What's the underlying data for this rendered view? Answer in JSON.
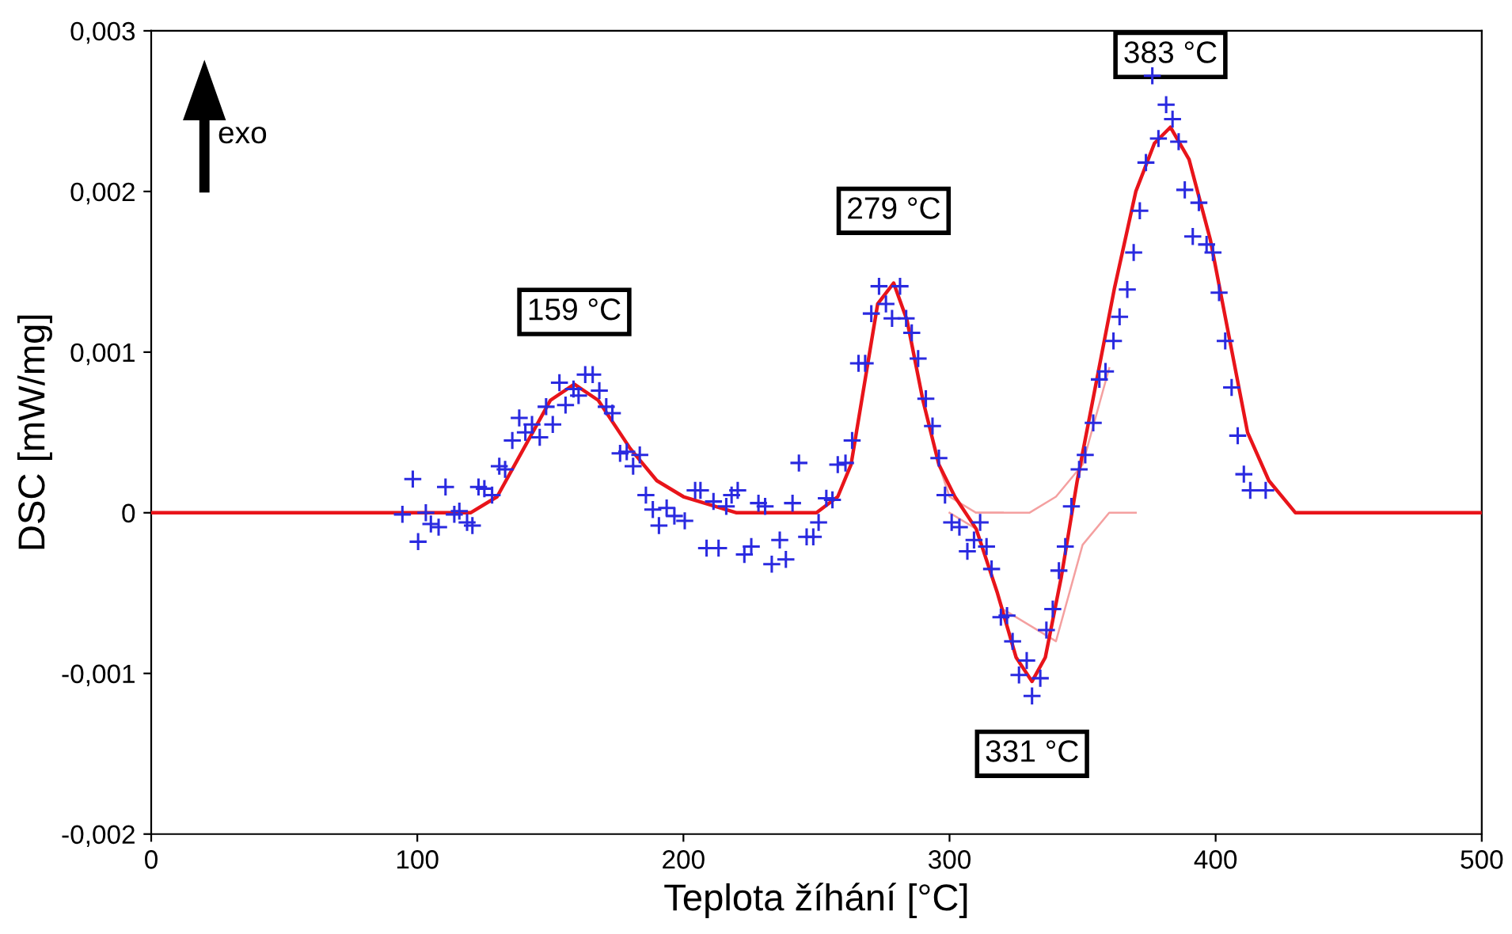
{
  "chart_data": {
    "type": "scatter",
    "xlabel": "Teplota žíhání [°C]",
    "ylabel": "DSC [mW/mg]",
    "xlim": [
      0,
      500
    ],
    "xticks": [
      0,
      100,
      200,
      300,
      400,
      500
    ],
    "ylim": [
      -0.002,
      0.003
    ],
    "yticks": [
      {
        "value": -0.002,
        "label": "-0,002"
      },
      {
        "value": -0.001,
        "label": "-0,001"
      },
      {
        "value": 0,
        "label": "0"
      },
      {
        "value": 0.001,
        "label": "0,001"
      },
      {
        "value": 0.002,
        "label": "0,002"
      },
      {
        "value": 0.003,
        "label": "0,003"
      }
    ],
    "grid": false,
    "legend": false,
    "annotations": [
      "exo",
      {
        "text": "159 °C",
        "x": 159,
        "y": 0.0008
      },
      {
        "text": "279 °C",
        "x": 279,
        "y": 0.00143
      },
      {
        "text": "331 °C",
        "x": 331,
        "y": -0.00105
      },
      {
        "text": "383 °C",
        "x": 383,
        "y": 0.0024
      }
    ],
    "series": [
      {
        "type": "line",
        "color": "#f4a0a0",
        "line_style": "solid",
        "marker": "none",
        "x": [
          310,
          330,
          340,
          350,
          360
        ],
        "values": [
          0,
          0,
          0.0001,
          0.0003,
          0.0009
        ]
      },
      {
        "type": "line",
        "color": "#f4a0a0",
        "line_style": "solid",
        "marker": "none",
        "x": [
          300,
          310,
          320,
          340,
          345,
          350,
          360,
          370
        ],
        "values": [
          0,
          -0.0001,
          -0.0006,
          -0.0008,
          -0.0005,
          -0.0002,
          0,
          0
        ]
      },
      {
        "type": "line",
        "color": "#f4a0a0",
        "line_style": "solid",
        "marker": "none",
        "x": [
          296,
          300,
          310,
          320
        ],
        "values": [
          0.0003,
          0.0001,
          0,
          0
        ]
      },
      {
        "type": "line",
        "color": "#e8141a",
        "line_style": "solid",
        "marker": "none",
        "x": [
          0,
          100,
          120,
          130,
          140,
          150,
          159,
          168,
          180,
          190,
          200,
          220,
          250,
          258,
          263,
          268,
          273,
          279,
          284,
          290,
          296,
          302,
          310,
          318,
          325,
          331,
          336,
          342,
          348,
          355,
          362,
          370,
          377,
          383,
          390,
          398,
          405,
          412,
          420,
          430,
          450,
          500
        ],
        "values": [
          0,
          0,
          0,
          0.0001,
          0.0004,
          0.0007,
          0.0008,
          0.0007,
          0.0004,
          0.0002,
          0.0001,
          0,
          0,
          0.0001,
          0.0003,
          0.0008,
          0.0013,
          0.00143,
          0.0012,
          0.0007,
          0.0003,
          0.0001,
          -0.0001,
          -0.0005,
          -0.0009,
          -0.00105,
          -0.0009,
          -0.0004,
          0.0002,
          0.0008,
          0.0014,
          0.002,
          0.0023,
          0.0024,
          0.0022,
          0.0017,
          0.0011,
          0.0005,
          0.0002,
          0,
          0,
          0
        ]
      },
      {
        "color": "#2a2ae0",
        "marker": "cross",
        "x": [
          94.4,
          98.3,
          100.3,
          103.2,
          105.1,
          108,
          110.6,
          113.9,
          115.8,
          118.7,
          120.7,
          123,
          125.2,
          128.1,
          130.8,
          133,
          135.7,
          138.3,
          140.6,
          143.1,
          146,
          148.4,
          150.9,
          153.4,
          155.7,
          158.7,
          160.6,
          163.1,
          165.9,
          168.4,
          171,
          173.3,
          176.2,
          178.7,
          181.1,
          183.6,
          185.9,
          188.5,
          190.8,
          193.7,
          196.6,
          200.5,
          204.4,
          206.4,
          208.7,
          211.3,
          213.2,
          216.1,
          218.1,
          220.4,
          222.9,
          225.5,
          228.2,
          230.7,
          233.2,
          236.2,
          238.5,
          241,
          243.4,
          246.3,
          248.8,
          250.8,
          253.7,
          256,
          258,
          260.9,
          263.4,
          265.8,
          268.3,
          270.6,
          273.5,
          276.1,
          278.4,
          281.4,
          283.7,
          285.8,
          288.2,
          291.1,
          293.6,
          296,
          298.3,
          300.8,
          303.7,
          306.7,
          309.2,
          311.5,
          313.9,
          315.8,
          319.3,
          321.6,
          323.7,
          326.1,
          329,
          331,
          334.1,
          336.4,
          338.8,
          341.1,
          343.5,
          345.8,
          348.7,
          351,
          354,
          356.3,
          358.6,
          361.6,
          363.9,
          366.8,
          369.2,
          371.5,
          373.8,
          376.2,
          378.5,
          381.4,
          383.8,
          386.1,
          388.4,
          391.4,
          393.7,
          396.6,
          399,
          401.3,
          403.6,
          406,
          408.3,
          410.6,
          413,
          418.8
        ],
        "values": [
          -1e-05,
          0.00021,
          -0.00018,
          0.0,
          -7e-05,
          -9e-05,
          0.00016,
          -1e-05,
          1e-05,
          -6e-05,
          -8e-05,
          0.00016,
          0.00015,
          0.00011,
          0.00029,
          0.00027,
          0.00045,
          0.00059,
          0.0005,
          0.00055,
          0.00047,
          0.00066,
          0.00055,
          0.00081,
          0.00067,
          0.00077,
          0.00073,
          0.00086,
          0.00086,
          0.00076,
          0.00066,
          0.00062,
          0.00037,
          0.00038,
          0.00029,
          0.00036,
          0.00011,
          2e-05,
          -8e-05,
          3e-05,
          -2e-05,
          -5e-05,
          0.00014,
          0.00014,
          -0.00022,
          7e-05,
          -0.00022,
          4e-05,
          0.00011,
          0.00014,
          -0.00026,
          -0.00021,
          6e-05,
          4e-05,
          -0.00032,
          -0.00017,
          -0.00029,
          6e-05,
          0.00031,
          -0.00015,
          -0.00015,
          -6e-05,
          9e-05,
          8e-05,
          0.0003,
          0.00031,
          0.00045,
          0.00093,
          0.00093,
          0.00124,
          0.00141,
          0.0013,
          0.00121,
          0.00141,
          0.00121,
          0.00112,
          0.00096,
          0.00071,
          0.00054,
          0.00034,
          0.00011,
          -6e-05,
          -9e-05,
          -0.00024,
          -0.00017,
          -6e-05,
          -0.00021,
          -0.00035,
          -0.00065,
          -0.00064,
          -0.0008,
          -0.00101,
          -0.00092,
          -0.00114,
          -0.00103,
          -0.00073,
          -0.0006,
          -0.00036,
          -0.00021,
          4e-05,
          0.00027,
          0.00036,
          0.00056,
          0.00083,
          0.00088,
          0.00107,
          0.00122,
          0.00139,
          0.00162,
          0.00188,
          0.00218,
          0.00272,
          0.00233,
          0.00254,
          0.00245,
          0.00231,
          0.00201,
          0.00172,
          0.00193,
          0.00167,
          0.00162,
          0.00137,
          0.00107,
          0.00078,
          0.00048,
          0.00024,
          0.00014,
          0.00014
        ]
      }
    ]
  }
}
